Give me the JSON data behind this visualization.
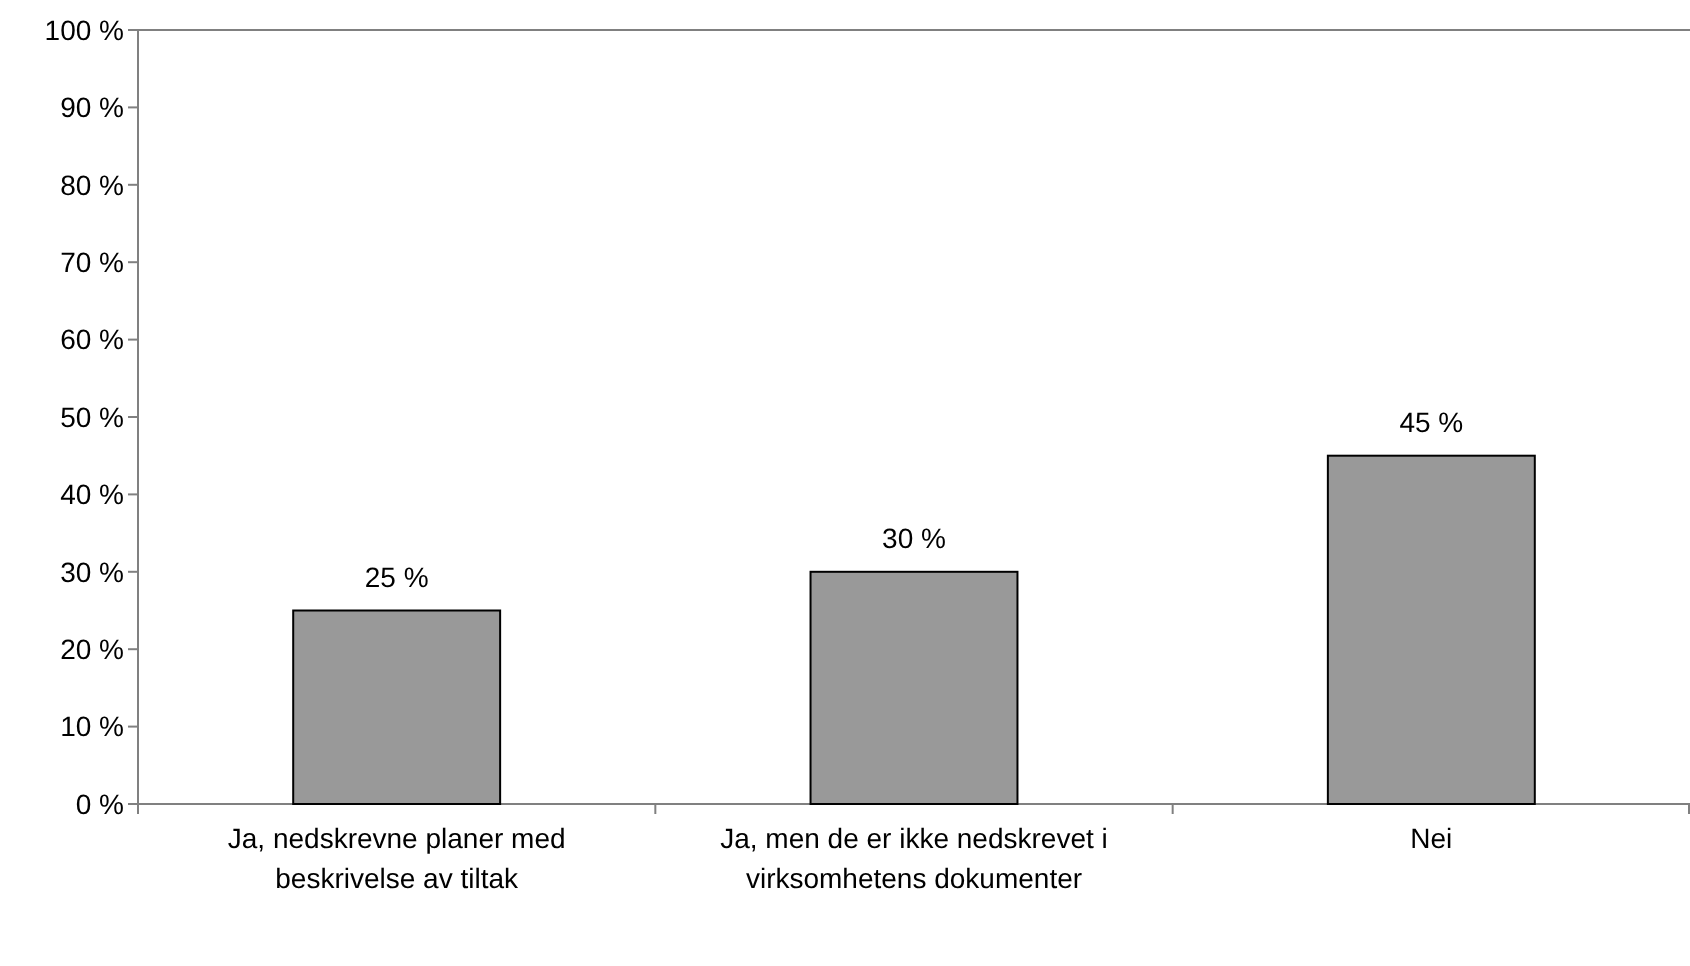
{
  "chart_data": {
    "type": "bar",
    "categories": [
      "Ja, nedskrevne planer med beskrivelse av tiltak",
      "Ja, men de er ikke nedskrevet i virksomhetens dokumenter",
      "Nei"
    ],
    "values": [
      25,
      30,
      45
    ],
    "color": "#999999",
    "value_labels": [
      "25 %",
      "30 %",
      "45 %"
    ],
    "ylim": [
      0,
      100
    ],
    "yticks": [
      {
        "value": 0,
        "label": "0 %"
      },
      {
        "value": 10,
        "label": "10 %"
      },
      {
        "value": 20,
        "label": "20 %"
      },
      {
        "value": 30,
        "label": "30 %"
      },
      {
        "value": 40,
        "label": "40 %"
      },
      {
        "value": 50,
        "label": "50 %"
      },
      {
        "value": 60,
        "label": "60 %"
      },
      {
        "value": 70,
        "label": "70 %"
      },
      {
        "value": 80,
        "label": "80 %"
      },
      {
        "value": 90,
        "label": "90 %"
      },
      {
        "value": 100,
        "label": "100 %"
      }
    ],
    "grid": false
  }
}
